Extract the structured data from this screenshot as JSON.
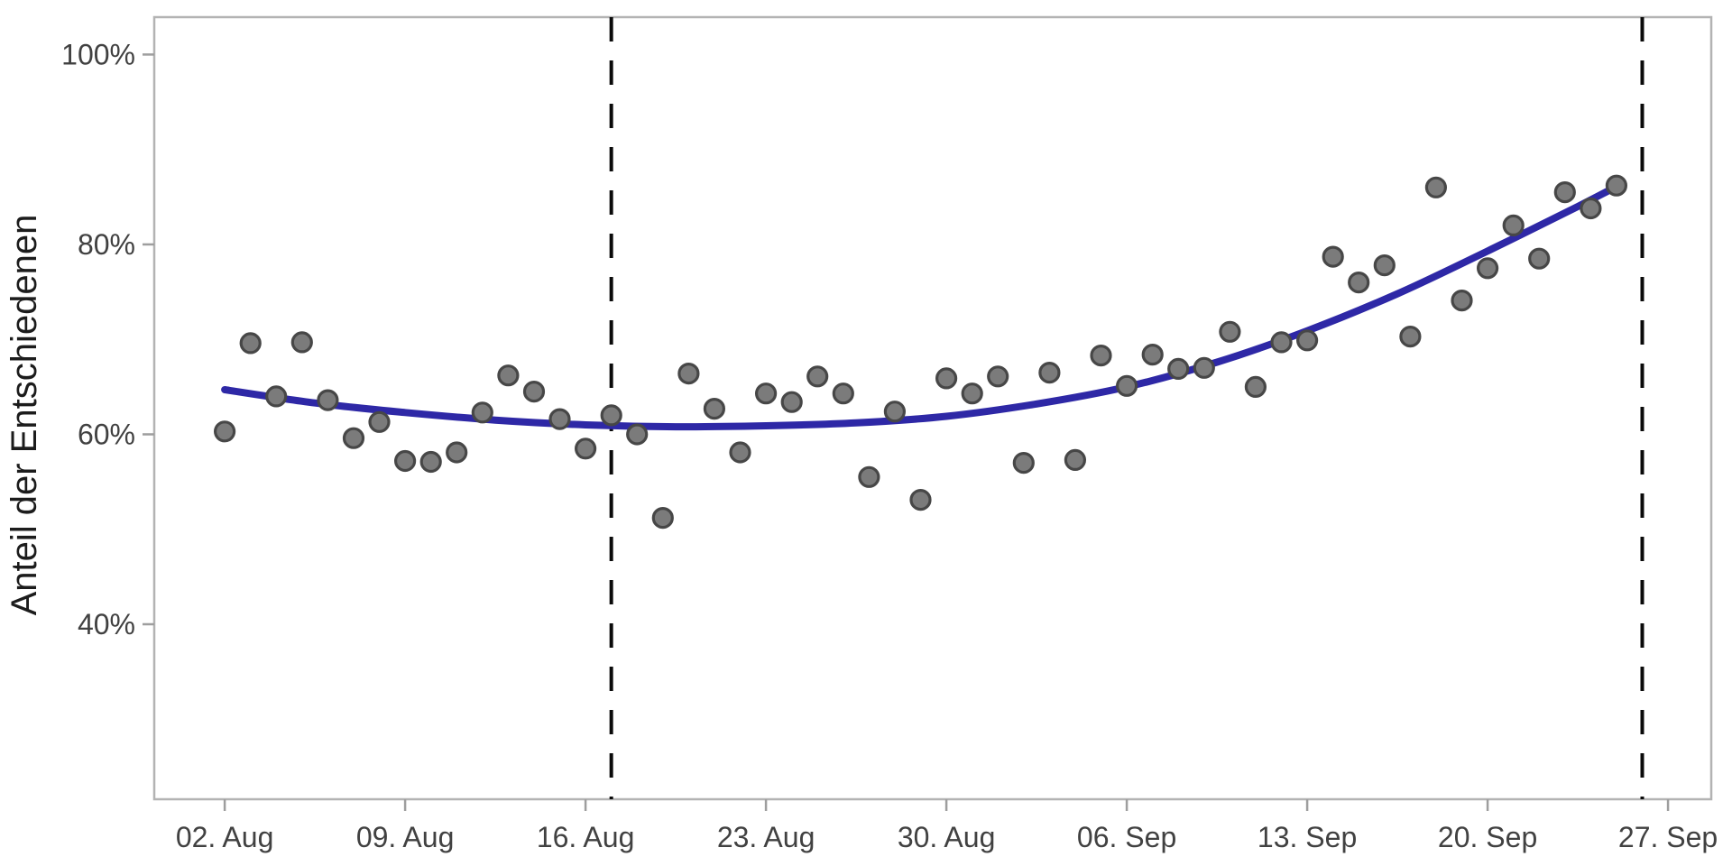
{
  "chart_data": {
    "type": "scatter",
    "title": "",
    "xlabel": "",
    "ylabel": "Anteil der Entschiedenen",
    "grid": false,
    "legend": "none",
    "ylim": [
      22,
      104
    ],
    "xlim_days": [
      -2.7,
      57.7
    ],
    "y_ticks": [
      {
        "label": "100%",
        "value": 100
      },
      {
        "label": "80%",
        "value": 80
      },
      {
        "label": "60%",
        "value": 60
      },
      {
        "label": "40%",
        "value": 40
      }
    ],
    "x_ticks": [
      {
        "label": "02. Aug",
        "day": 0
      },
      {
        "label": "09. Aug",
        "day": 7
      },
      {
        "label": "16. Aug",
        "day": 14
      },
      {
        "label": "23. Aug",
        "day": 21
      },
      {
        "label": "30. Aug",
        "day": 28
      },
      {
        "label": "06. Sep",
        "day": 35
      },
      {
        "label": "13. Sep",
        "day": 42
      },
      {
        "label": "20. Sep",
        "day": 49
      },
      {
        "label": "27. Sep",
        "day": 56
      }
    ],
    "vlines": [
      {
        "day": 15,
        "style": "dashed"
      },
      {
        "day": 55,
        "style": "dashed"
      }
    ],
    "points": [
      {
        "day": 0,
        "date": "02. Aug",
        "value": 60.3
      },
      {
        "day": 1,
        "date": "03. Aug",
        "value": 69.6
      },
      {
        "day": 2,
        "date": "04. Aug",
        "value": 64.0
      },
      {
        "day": 3,
        "date": "05. Aug",
        "value": 69.7
      },
      {
        "day": 4,
        "date": "06. Aug",
        "value": 63.6
      },
      {
        "day": 5,
        "date": "07. Aug",
        "value": 59.6
      },
      {
        "day": 6,
        "date": "08. Aug",
        "value": 61.3
      },
      {
        "day": 7,
        "date": "09. Aug",
        "value": 57.2
      },
      {
        "day": 8,
        "date": "10. Aug",
        "value": 57.1
      },
      {
        "day": 9,
        "date": "11. Aug",
        "value": 58.1
      },
      {
        "day": 10,
        "date": "12. Aug",
        "value": 62.3
      },
      {
        "day": 11,
        "date": "13. Aug",
        "value": 66.2
      },
      {
        "day": 12,
        "date": "14. Aug",
        "value": 64.5
      },
      {
        "day": 13,
        "date": "15. Aug",
        "value": 61.6
      },
      {
        "day": 14,
        "date": "16. Aug",
        "value": 58.5
      },
      {
        "day": 15,
        "date": "17. Aug",
        "value": 62.0
      },
      {
        "day": 16,
        "date": "18. Aug",
        "value": 60.0
      },
      {
        "day": 17,
        "date": "19. Aug",
        "value": 51.2
      },
      {
        "day": 18,
        "date": "20. Aug",
        "value": 66.4
      },
      {
        "day": 19,
        "date": "21. Aug",
        "value": 62.7
      },
      {
        "day": 20,
        "date": "22. Aug",
        "value": 58.1
      },
      {
        "day": 21,
        "date": "23. Aug",
        "value": 64.3
      },
      {
        "day": 22,
        "date": "24. Aug",
        "value": 63.4
      },
      {
        "day": 23,
        "date": "25. Aug",
        "value": 66.1
      },
      {
        "day": 24,
        "date": "26. Aug",
        "value": 64.3
      },
      {
        "day": 25,
        "date": "27. Aug",
        "value": 55.5
      },
      {
        "day": 26,
        "date": "28. Aug",
        "value": 62.4
      },
      {
        "day": 27,
        "date": "29. Aug",
        "value": 53.1
      },
      {
        "day": 28,
        "date": "30. Aug",
        "value": 65.9
      },
      {
        "day": 29,
        "date": "31. Aug",
        "value": 64.3
      },
      {
        "day": 30,
        "date": "01. Sep",
        "value": 66.1
      },
      {
        "day": 31,
        "date": "02. Sep",
        "value": 57.0
      },
      {
        "day": 32,
        "date": "03. Sep",
        "value": 66.5
      },
      {
        "day": 33,
        "date": "04. Sep",
        "value": 57.3
      },
      {
        "day": 34,
        "date": "05. Sep",
        "value": 68.3
      },
      {
        "day": 35,
        "date": "06. Sep",
        "value": 65.1
      },
      {
        "day": 36,
        "date": "07. Sep",
        "value": 68.4
      },
      {
        "day": 37,
        "date": "08. Sep",
        "value": 66.9
      },
      {
        "day": 38,
        "date": "09. Sep",
        "value": 67.0
      },
      {
        "day": 39,
        "date": "10. Sep",
        "value": 70.8
      },
      {
        "day": 40,
        "date": "11. Sep",
        "value": 65.0
      },
      {
        "day": 41,
        "date": "12. Sep",
        "value": 69.7
      },
      {
        "day": 42,
        "date": "13. Sep",
        "value": 69.9
      },
      {
        "day": 43,
        "date": "14. Sep",
        "value": 78.7
      },
      {
        "day": 44,
        "date": "15. Sep",
        "value": 76.0
      },
      {
        "day": 45,
        "date": "16. Sep",
        "value": 77.8
      },
      {
        "day": 46,
        "date": "17. Sep",
        "value": 70.3
      },
      {
        "day": 47,
        "date": "18. Sep",
        "value": 86.0
      },
      {
        "day": 48,
        "date": "19. Sep",
        "value": 74.1
      },
      {
        "day": 49,
        "date": "20. Sep",
        "value": 77.5
      },
      {
        "day": 50,
        "date": "21. Sep",
        "value": 82.0
      },
      {
        "day": 51,
        "date": "22. Sep",
        "value": 78.5
      },
      {
        "day": 52,
        "date": "23. Sep",
        "value": 85.5
      },
      {
        "day": 53,
        "date": "24. Sep",
        "value": 83.8
      },
      {
        "day": 54,
        "date": "25. Sep",
        "value": 86.2
      }
    ],
    "trend": {
      "name": "smoothed-trend",
      "samples": [
        [
          0.0,
          64.7
        ],
        [
          3.5,
          63.3
        ],
        [
          7.0,
          62.3
        ],
        [
          10.5,
          61.5
        ],
        [
          14.0,
          61.0
        ],
        [
          17.5,
          60.8
        ],
        [
          21.0,
          60.9
        ],
        [
          24.5,
          61.2
        ],
        [
          28.0,
          61.9
        ],
        [
          31.5,
          63.2
        ],
        [
          35.0,
          65.0
        ],
        [
          38.5,
          67.6
        ],
        [
          42.0,
          70.9
        ],
        [
          45.5,
          74.8
        ],
        [
          49.0,
          79.3
        ],
        [
          52.5,
          84.0
        ],
        [
          54.0,
          86.1
        ]
      ]
    },
    "colors": {
      "background": "#ffffff",
      "point_fill": "#7b7b7b",
      "point_stroke": "#474747",
      "trend_line": "#2e28a6",
      "dashed_line": "#0a0a0a",
      "frame": "#b3b3b3",
      "tick_mark": "#9e9e9e",
      "tick_text": "#414141",
      "axis_title_text": "#1c1c1c"
    }
  }
}
